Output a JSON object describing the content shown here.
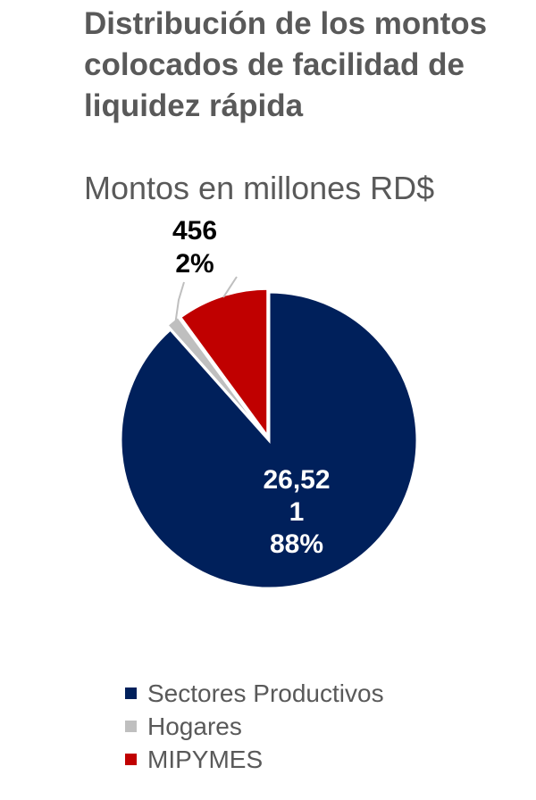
{
  "chart_data": {
    "type": "pie",
    "title": "Distribución de los montos colocados de facilidad de liquidez rápida",
    "subtitle": "Montos en millones RD$",
    "slices": [
      {
        "name": "Sectores Productivos",
        "value": 26521,
        "value_label": "26,52\n1",
        "pct_label": "88%",
        "color": "#00205B"
      },
      {
        "name": "Hogares",
        "value": 456,
        "value_label": "456",
        "pct_label": "2%",
        "color": "#BFBFBF"
      },
      {
        "name": "MIPYMES",
        "value": 3014,
        "value_label": "",
        "pct_label": "",
        "color": "#C00000"
      }
    ],
    "legend_position": "bottom"
  }
}
